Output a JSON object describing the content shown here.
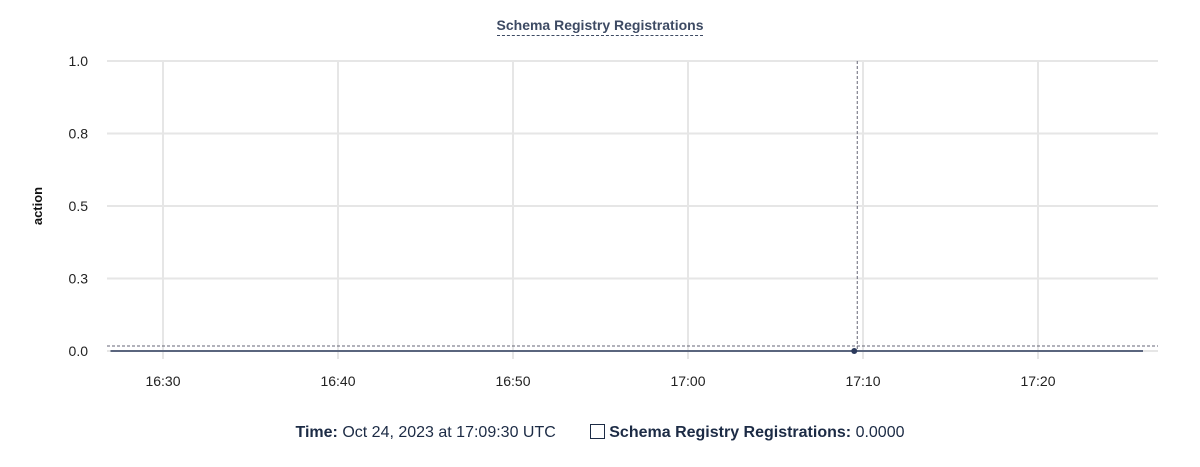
{
  "chart_data": {
    "type": "line",
    "title": "Schema Registry Registrations",
    "ylabel": "action",
    "xlabel": "",
    "ylim": [
      0,
      1
    ],
    "yticks": [
      0,
      0.25,
      0.5,
      0.75,
      1.0
    ],
    "ytick_labels": [
      "0.0",
      "0.3",
      "0.5",
      "0.8",
      "1.0"
    ],
    "xticks": [
      "16:30",
      "16:40",
      "16:50",
      "17:00",
      "17:10",
      "17:20"
    ],
    "xlim": [
      "16:27",
      "17:26"
    ],
    "grid": true,
    "series": [
      {
        "name": "Schema Registry Registrations",
        "color": "#2b3a5c",
        "x": [
          "16:27",
          "16:30",
          "16:35",
          "16:40",
          "16:45",
          "16:50",
          "16:55",
          "17:00",
          "17:05",
          "17:10",
          "17:15",
          "17:20",
          "17:25",
          "17:26"
        ],
        "y": [
          0,
          0,
          0,
          0,
          0,
          0,
          0,
          0,
          0,
          0,
          0,
          0,
          0,
          0
        ]
      }
    ],
    "hover": {
      "time": "17:09:30",
      "value": 0
    }
  },
  "legend": {
    "time_label": "Time:",
    "time_value": "Oct 24, 2023 at 17:09:30 UTC",
    "series_label": "Schema Registry Registrations:",
    "series_value": "0.0000"
  }
}
